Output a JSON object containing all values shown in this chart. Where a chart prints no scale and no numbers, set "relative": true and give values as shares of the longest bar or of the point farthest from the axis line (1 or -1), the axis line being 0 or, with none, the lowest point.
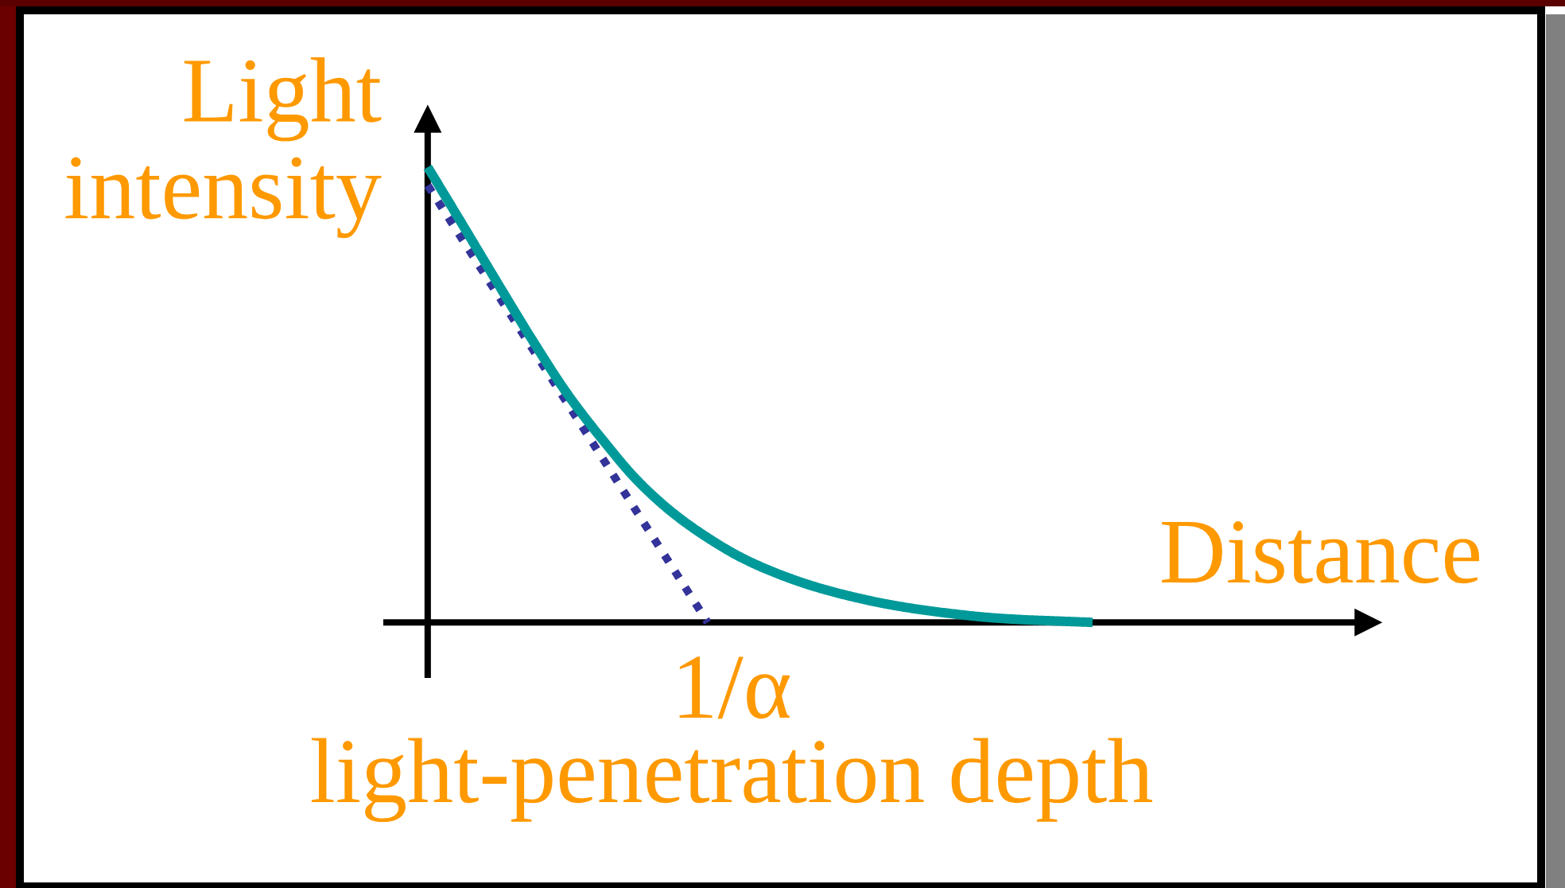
{
  "chart_data": {
    "type": "line",
    "relative": true,
    "categories": [
      null,
      null,
      null,
      null,
      null,
      null,
      null,
      null,
      null,
      null,
      null,
      null,
      null,
      null,
      null,
      null,
      null,
      null,
      null,
      null
    ],
    "series": [
      {
        "color": "#333399",
        "line_style": "dotted",
        "values": [
          0.96,
          0.84,
          0.72,
          0.6,
          0.48,
          0.36,
          0.24,
          0.12,
          0,
          null,
          null,
          null,
          null,
          null,
          null,
          null,
          null,
          null,
          null,
          null
        ]
      },
      {
        "color": "#009999",
        "line_style": "solid",
        "values": [
          1,
          0.873,
          0.745,
          0.619,
          0.501,
          0.401,
          0.311,
          0.241,
          0.186,
          0.141,
          0.107,
          0.08,
          0.059,
          0.042,
          0.029,
          0.019,
          0.011,
          0.006,
          0.003,
          0
        ]
      }
    ],
    "xlabel": "Distance",
    "ylabel": "Light intensity",
    "annotations": [
      "1/α",
      "light-penetration depth"
    ]
  }
}
